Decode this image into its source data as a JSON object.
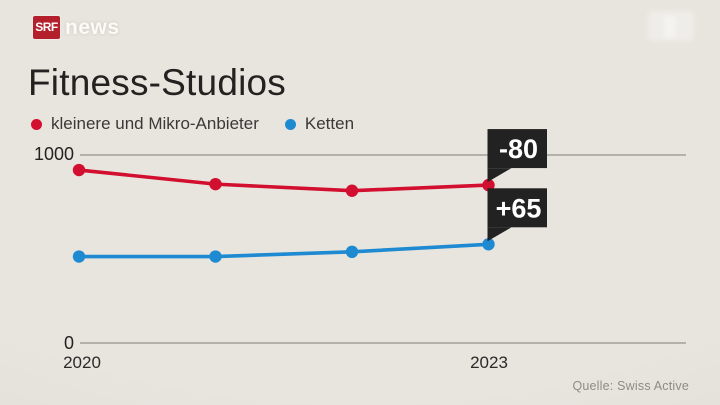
{
  "header": {
    "logo_text": "SRF",
    "logo_suffix": "news",
    "logo_color": "#b41f2c"
  },
  "title": "Fitness-Studios",
  "source": "Quelle: Swiss Active",
  "chart_data": {
    "type": "line",
    "title": "Fitness-Studios",
    "x": [
      "2020",
      "2021",
      "2022",
      "2023"
    ],
    "x_tick_labels": [
      "2020",
      "2023"
    ],
    "ylim": [
      0,
      1000
    ],
    "yticks": [
      1000,
      0
    ],
    "grid": "horizontal-only",
    "legend_position": "top-left",
    "series": [
      {
        "name": "kleinere und Mikro-Anbieter",
        "color": "#d20f2e",
        "values": [
          920,
          845,
          810,
          840
        ]
      },
      {
        "name": "Ketten",
        "color": "#1e8ad2",
        "values": [
          460,
          460,
          485,
          525
        ]
      }
    ],
    "annotations": [
      {
        "label": "-80",
        "series_index": 0,
        "x_index": 3,
        "box_color": "#222222",
        "text_color": "#ffffff"
      },
      {
        "label": "+65",
        "series_index": 1,
        "x_index": 3,
        "box_color": "#222222",
        "text_color": "#ffffff"
      }
    ]
  }
}
